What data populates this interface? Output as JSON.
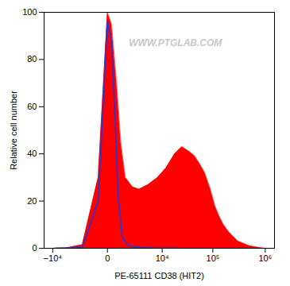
{
  "chart_data": {
    "type": "line",
    "xlabel": "PE-65111 CD38 (HIT2)",
    "ylabel": "Relative cell number",
    "log": "x",
    "grid": false,
    "xlim": [
      -15000,
      1500000
    ],
    "xticks": [
      {
        "value": -10000,
        "label": "−10⁴"
      },
      0,
      {
        "value": 10000,
        "label": "10⁴"
      },
      {
        "value": 100000,
        "label": "10⁵"
      },
      {
        "value": 1000000,
        "label": "10⁶"
      }
    ],
    "ylim": [
      0,
      100
    ],
    "yticks": [
      0,
      20,
      40,
      60,
      80,
      100
    ],
    "series": [
      {
        "type": "area",
        "color": "#ff0000",
        "x": [
          -9000,
          -5000,
          -2000,
          -500,
          0,
          200,
          500,
          800,
          1200,
          2000,
          3000,
          5000,
          8000,
          12000,
          18000,
          25000,
          35000,
          45000,
          55000,
          70000,
          90000,
          110000,
          130000,
          160000,
          200000,
          300000,
          500000,
          800000,
          1000000
        ],
        "values": [
          0,
          0.2,
          1.5,
          30,
          100,
          95,
          70,
          45,
          30,
          26,
          25,
          27,
          30,
          34,
          40,
          43,
          41,
          39,
          36,
          32,
          25,
          18,
          14,
          10,
          7,
          3,
          1,
          0.2,
          0
        ]
      },
      {
        "type": "line",
        "color": "#3333cc",
        "x": [
          -9000,
          -5000,
          -2000,
          -500,
          0,
          200,
          400,
          600,
          900,
          1500,
          3000,
          8000,
          20000
        ],
        "values": [
          0,
          0.1,
          0.5,
          20,
          96,
          88,
          55,
          22,
          5,
          1,
          0.3,
          0,
          0
        ]
      }
    ],
    "annotations": [
      {
        "text": "WWW.PTGLAB.COM",
        "color": "#c8c8c8"
      }
    ]
  }
}
